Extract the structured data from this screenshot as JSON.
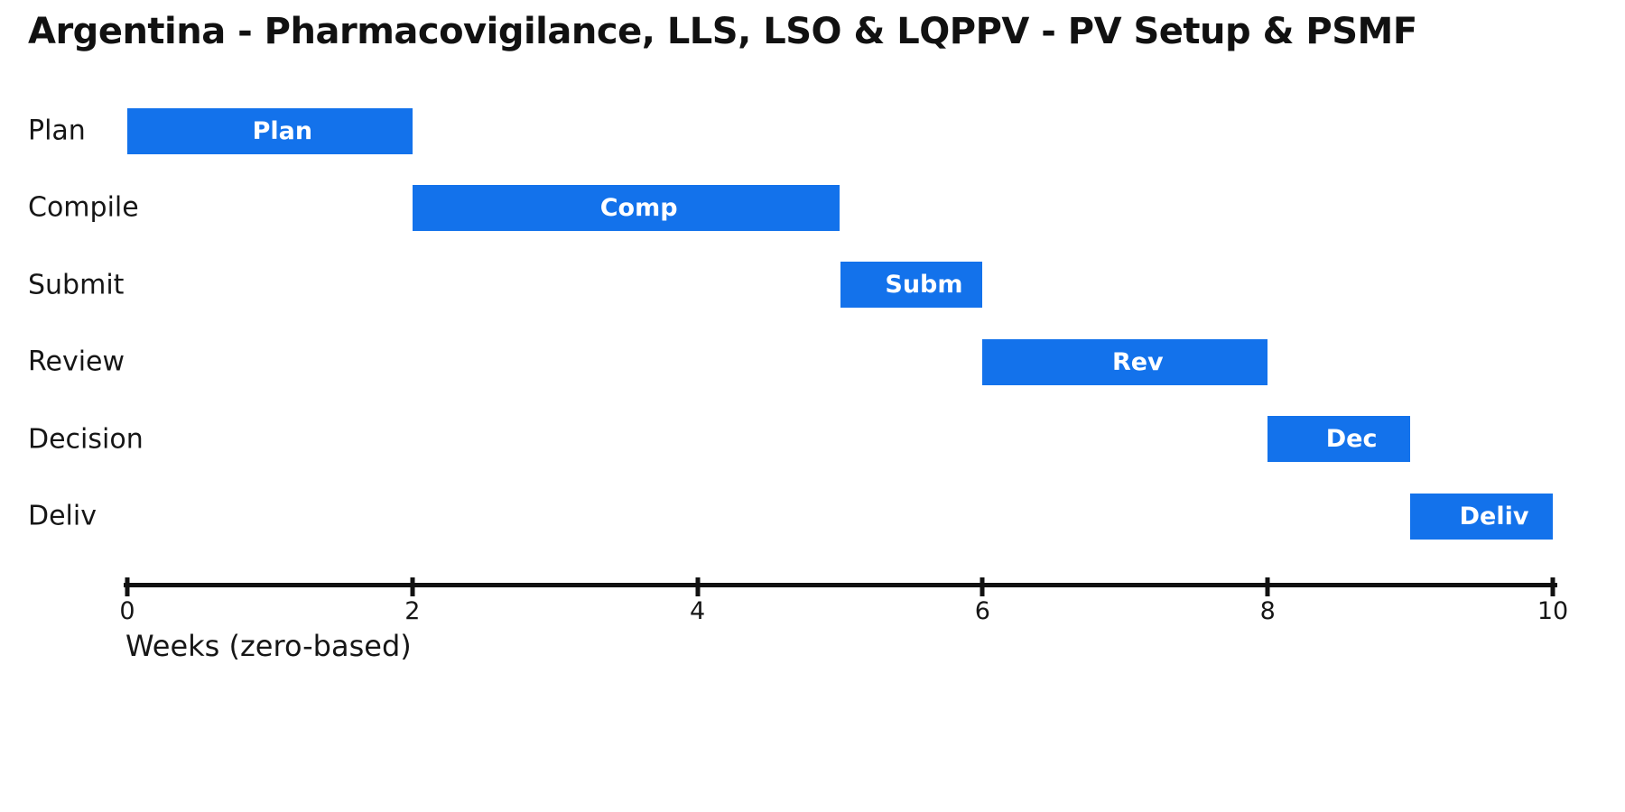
{
  "chart_data": {
    "type": "bar",
    "variant": "gantt",
    "title": "Argentina - Pharmacovigilance, LLS, LSO & LQPPV - PV Setup & PSMF",
    "xlabel": "Weeks (zero-based)",
    "xlim": [
      0,
      10
    ],
    "xticks": [
      0,
      2,
      4,
      6,
      8,
      10
    ],
    "grid": false,
    "legend": false,
    "rows": [
      {
        "label": "Plan",
        "bar_label": "Plan",
        "start": 0,
        "end": 2
      },
      {
        "label": "Compile",
        "bar_label": "Comp",
        "start": 2,
        "end": 5
      },
      {
        "label": "Submit",
        "bar_label": "Subm",
        "start": 5,
        "end": 6
      },
      {
        "label": "Review",
        "bar_label": "Rev",
        "start": 6,
        "end": 8
      },
      {
        "label": "Decision",
        "bar_label": "Dec",
        "start": 8,
        "end": 9
      },
      {
        "label": "Deliv",
        "bar_label": "Deliv",
        "start": 9,
        "end": 10
      }
    ]
  },
  "colors": {
    "bar_fill": "#1372eb",
    "bar_label_text": "#ffffff",
    "text": "#161616",
    "axis": "#111111",
    "background": "#ffffff"
  }
}
